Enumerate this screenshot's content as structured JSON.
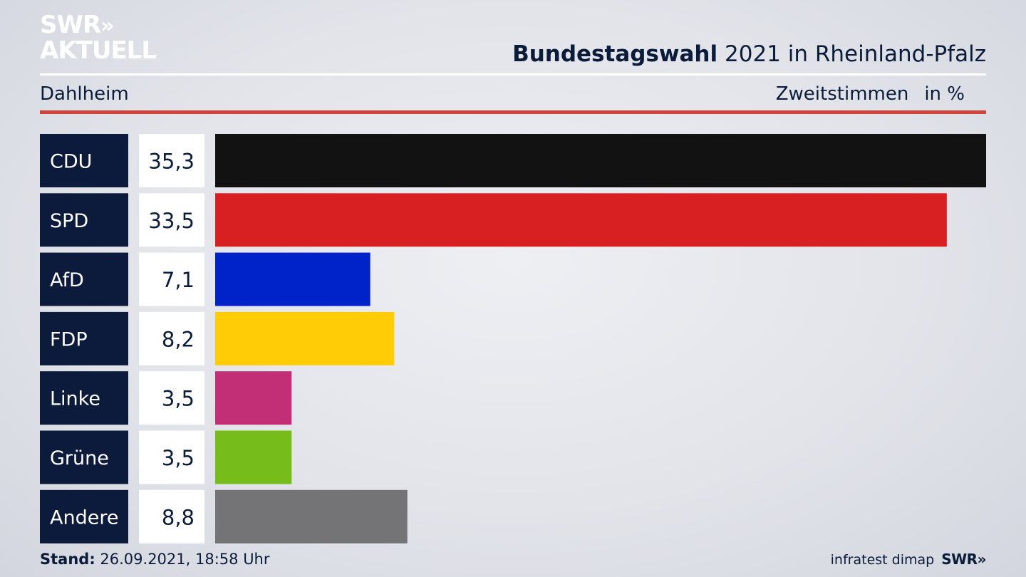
{
  "brand": {
    "logo_line1": "SWR",
    "logo_chevrons": "»",
    "logo_line2": "AKTUELL"
  },
  "header": {
    "title_bold": "Bundestagswahl",
    "title_rest": "2021 in Rheinland-Pfalz",
    "location": "Dahlheim",
    "measure": "Zweitstimmen",
    "unit": "in %"
  },
  "colors": {
    "label_box": "#0c1b3b",
    "value_box": "#ffffff",
    "accent_rule": "#d0443c"
  },
  "chart_data": {
    "type": "bar",
    "orientation": "horizontal",
    "categories": [
      "CDU",
      "SPD",
      "AfD",
      "FDP",
      "Linke",
      "Grüne",
      "Andere"
    ],
    "values": [
      35.3,
      33.5,
      7.1,
      8.2,
      3.5,
      3.5,
      8.8
    ],
    "value_labels": [
      "35,3",
      "33,5",
      "7,1",
      "8,2",
      "3,5",
      "3,5",
      "8,8"
    ],
    "bar_colors": [
      "#121212",
      "#d81f21",
      "#0022c9",
      "#ffcc05",
      "#c22f76",
      "#76bd1c",
      "#747476"
    ],
    "xlim": [
      0,
      35.3
    ],
    "grid": false
  },
  "footer": {
    "stand_label": "Stand:",
    "stand_value": "26.09.2021, 18:58 Uhr",
    "source": "infratest dimap",
    "source_logo": "SWR»"
  }
}
